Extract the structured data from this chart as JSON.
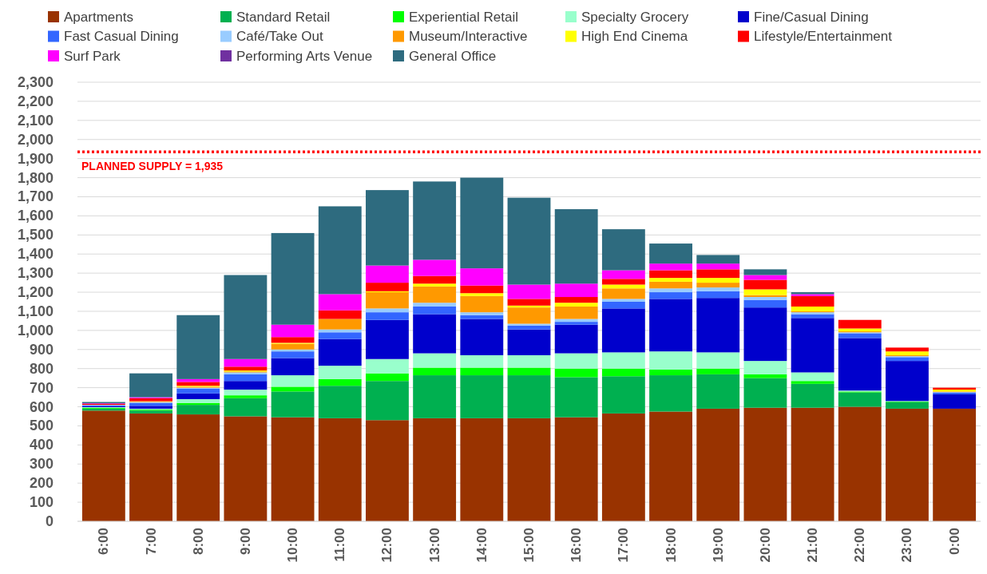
{
  "chart_data": {
    "type": "bar",
    "stacked": true,
    "categories": [
      "6:00",
      "7:00",
      "8:00",
      "9:00",
      "10:00",
      "11:00",
      "12:00",
      "13:00",
      "14:00",
      "15:00",
      "16:00",
      "17:00",
      "18:00",
      "19:00",
      "20:00",
      "21:00",
      "22:00",
      "23:00",
      "0:00"
    ],
    "series": [
      {
        "name": "Apartments",
        "color": "#993300",
        "values": [
          580,
          565,
          560,
          550,
          545,
          540,
          530,
          540,
          540,
          540,
          545,
          565,
          575,
          590,
          595,
          595,
          600,
          590,
          590
        ]
      },
      {
        "name": "Standard Retail",
        "color": "#00b050",
        "values": [
          10,
          15,
          50,
          95,
          135,
          170,
          205,
          225,
          225,
          225,
          210,
          195,
          190,
          180,
          155,
          125,
          75,
          35,
          0
        ]
      },
      {
        "name": "Experiential Retail",
        "color": "#00ff00",
        "values": [
          5,
          5,
          10,
          15,
          25,
          35,
          40,
          40,
          40,
          40,
          45,
          40,
          30,
          30,
          20,
          15,
          5,
          3,
          0
        ]
      },
      {
        "name": "Specialty Grocery",
        "color": "#99ffcc",
        "values": [
          3,
          5,
          20,
          30,
          60,
          70,
          75,
          75,
          65,
          65,
          80,
          85,
          95,
          85,
          70,
          45,
          5,
          2,
          0
        ]
      },
      {
        "name": "Fine/Casual Dining",
        "color": "#0000cc",
        "values": [
          5,
          15,
          30,
          45,
          90,
          140,
          205,
          205,
          190,
          135,
          150,
          230,
          275,
          285,
          280,
          285,
          275,
          210,
          75
        ]
      },
      {
        "name": "Fast Casual Dining",
        "color": "#3366ff",
        "values": [
          5,
          15,
          25,
          35,
          35,
          35,
          40,
          40,
          20,
          20,
          15,
          35,
          35,
          35,
          40,
          20,
          25,
          20,
          10
        ]
      },
      {
        "name": "Café/Take Out",
        "color": "#99ccff",
        "values": [
          2,
          5,
          5,
          10,
          10,
          15,
          20,
          20,
          15,
          10,
          15,
          15,
          20,
          20,
          15,
          10,
          5,
          5,
          2
        ]
      },
      {
        "name": "Museum/Interactive",
        "color": "#ff9900",
        "values": [
          0,
          5,
          5,
          5,
          30,
          55,
          85,
          85,
          85,
          85,
          65,
          55,
          35,
          25,
          10,
          5,
          5,
          5,
          3
        ]
      },
      {
        "name": "High End Cinema",
        "color": "#ffff00",
        "values": [
          0,
          0,
          5,
          5,
          5,
          0,
          5,
          15,
          15,
          10,
          20,
          20,
          20,
          25,
          30,
          25,
          15,
          20,
          10
        ]
      },
      {
        "name": "Lifestyle/Entertainment",
        "color": "#ff0000",
        "values": [
          5,
          15,
          20,
          20,
          30,
          45,
          45,
          40,
          40,
          35,
          30,
          30,
          40,
          45,
          50,
          55,
          45,
          20,
          10
        ]
      },
      {
        "name": "Surf Park",
        "color": "#ff00ff",
        "values": [
          3,
          5,
          15,
          40,
          65,
          85,
          90,
          85,
          90,
          75,
          70,
          45,
          35,
          30,
          25,
          10,
          0,
          0,
          0
        ]
      },
      {
        "name": "Performing Arts Venue",
        "color": "#7030a0",
        "values": [
          0,
          0,
          0,
          0,
          0,
          0,
          0,
          0,
          0,
          0,
          0,
          0,
          0,
          0,
          0,
          0,
          0,
          0,
          0
        ]
      },
      {
        "name": "General Office",
        "color": "#2e6b7f",
        "values": [
          7,
          125,
          335,
          440,
          480,
          460,
          395,
          410,
          475,
          455,
          390,
          215,
          105,
          45,
          30,
          10,
          0,
          0,
          0
        ]
      }
    ],
    "ylim": [
      0,
      2300
    ],
    "yticks": [
      0,
      100,
      200,
      300,
      400,
      500,
      600,
      700,
      800,
      900,
      {
        "value": 1000,
        "label": "1,000"
      },
      {
        "value": 1100,
        "label": "1,100"
      },
      {
        "value": 1200,
        "label": "1,200"
      },
      {
        "value": 1300,
        "label": "1,300"
      },
      {
        "value": 1400,
        "label": "1,400"
      },
      {
        "value": 1500,
        "label": "1,500"
      },
      {
        "value": 1600,
        "label": "1,600"
      },
      {
        "value": 1700,
        "label": "1,700"
      },
      {
        "value": 1800,
        "label": "1,800"
      },
      {
        "value": 1900,
        "label": "1,900"
      },
      {
        "value": 2000,
        "label": "2,000"
      },
      {
        "value": 2100,
        "label": "2,100"
      },
      {
        "value": 2200,
        "label": "2,200"
      },
      {
        "value": 2300,
        "label": "2,300"
      }
    ],
    "ref_lines": [
      {
        "axis": "y",
        "value": 1935,
        "label": "PLANNED SUPPLY = 1,935",
        "color": "#ff0000",
        "line_style": "dotted"
      }
    ],
    "grid": "y",
    "legend": "top"
  }
}
